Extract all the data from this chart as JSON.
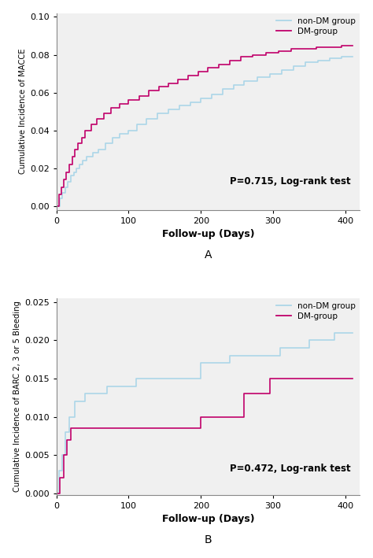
{
  "panel_A": {
    "ylabel": "Cumulative Incidence of MACCE",
    "xlabel": "Follow-up (Days)",
    "xlim": [
      0,
      420
    ],
    "ylim": [
      -0.002,
      0.102
    ],
    "yticks": [
      0.0,
      0.02,
      0.04,
      0.06,
      0.08,
      0.1
    ],
    "xticks": [
      0,
      100,
      200,
      300,
      400
    ],
    "pvalue_text": "P=0.715, Log-rank test",
    "non_dm": {
      "x": [
        0,
        5,
        8,
        12,
        16,
        20,
        24,
        28,
        32,
        36,
        42,
        50,
        58,
        68,
        78,
        88,
        100,
        112,
        125,
        140,
        155,
        170,
        185,
        200,
        215,
        230,
        245,
        260,
        278,
        295,
        312,
        328,
        345,
        362,
        378,
        395,
        410
      ],
      "y": [
        0.0,
        0.004,
        0.007,
        0.01,
        0.013,
        0.016,
        0.018,
        0.02,
        0.022,
        0.024,
        0.026,
        0.028,
        0.03,
        0.033,
        0.036,
        0.038,
        0.04,
        0.043,
        0.046,
        0.049,
        0.051,
        0.053,
        0.055,
        0.057,
        0.059,
        0.062,
        0.064,
        0.066,
        0.068,
        0.07,
        0.072,
        0.074,
        0.076,
        0.077,
        0.078,
        0.079,
        0.079
      ],
      "color": "#acd6e8",
      "label": "non-DM group"
    },
    "dm": {
      "x": [
        0,
        4,
        7,
        10,
        14,
        18,
        22,
        26,
        30,
        35,
        40,
        48,
        56,
        66,
        76,
        88,
        100,
        115,
        128,
        142,
        155,
        168,
        182,
        196,
        210,
        225,
        240,
        255,
        272,
        290,
        308,
        325,
        343,
        360,
        378,
        395,
        410
      ],
      "y": [
        0.0,
        0.006,
        0.01,
        0.014,
        0.018,
        0.022,
        0.026,
        0.03,
        0.033,
        0.036,
        0.04,
        0.043,
        0.046,
        0.049,
        0.052,
        0.054,
        0.056,
        0.058,
        0.061,
        0.063,
        0.065,
        0.067,
        0.069,
        0.071,
        0.073,
        0.075,
        0.077,
        0.079,
        0.08,
        0.081,
        0.082,
        0.083,
        0.083,
        0.084,
        0.084,
        0.085,
        0.085
      ],
      "color": "#c0006a",
      "label": "DM-group"
    }
  },
  "panel_B": {
    "ylabel": "Cumulative Incidence of BARC 2, 3 or 5 Bleeding",
    "xlabel": "Follow-up (Days)",
    "xlim": [
      0,
      420
    ],
    "ylim": [
      -0.0002,
      0.0255
    ],
    "yticks": [
      0.0,
      0.005,
      0.01,
      0.015,
      0.02,
      0.025
    ],
    "xticks": [
      0,
      100,
      200,
      300,
      400
    ],
    "pvalue_text": "P=0.472, Log-rank test",
    "non_dm": {
      "x": [
        0,
        4,
        8,
        12,
        18,
        25,
        40,
        70,
        110,
        140,
        200,
        240,
        290,
        310,
        350,
        385,
        400,
        410
      ],
      "y": [
        0.0,
        0.003,
        0.005,
        0.008,
        0.01,
        0.012,
        0.013,
        0.014,
        0.015,
        0.015,
        0.017,
        0.018,
        0.018,
        0.019,
        0.02,
        0.021,
        0.021,
        0.021
      ],
      "color": "#acd6e8",
      "label": "non-DM group"
    },
    "dm": {
      "x": [
        0,
        5,
        10,
        15,
        20,
        30,
        80,
        190,
        200,
        260,
        285,
        295,
        350,
        400,
        410
      ],
      "y": [
        0.0,
        0.002,
        0.005,
        0.007,
        0.0085,
        0.0085,
        0.0085,
        0.0085,
        0.01,
        0.013,
        0.013,
        0.015,
        0.015,
        0.015,
        0.015
      ],
      "color": "#c0006a",
      "label": "DM-group"
    }
  }
}
